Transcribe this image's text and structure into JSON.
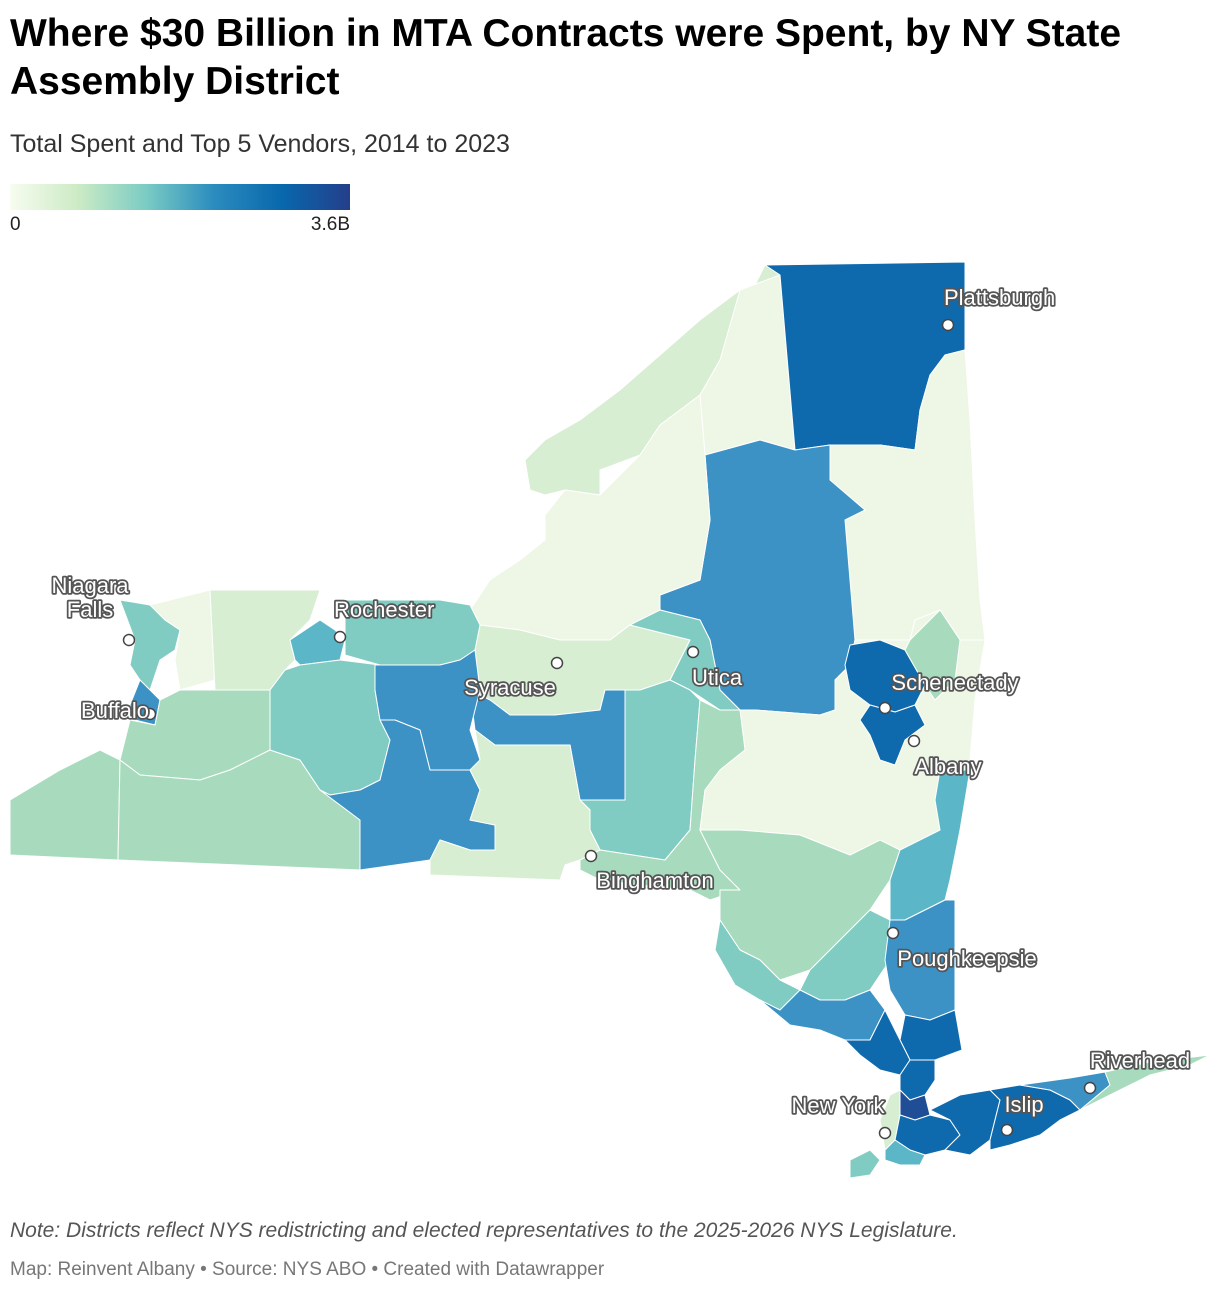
{
  "title": "Where $30 Billion in MTA Contracts were Spent, by NY State Assembly District",
  "subtitle": "Total Spent and Top 5 Vendors, 2014 to 2023",
  "legend": {
    "min_label": "0",
    "max_label": "3.6B",
    "scale_colors": [
      "#f7fcf0",
      "#ccebc5",
      "#7bccc4",
      "#2b8cbe",
      "#0868ac",
      "#253e8a"
    ]
  },
  "colors": {
    "very_low": "#eef7e6",
    "low": "#d7eed3",
    "low_mid": "#a8dbbd",
    "mid": "#81ccc2",
    "mid_high": "#5bb7c8",
    "high": "#3c92c4",
    "very_high": "#0f6aad",
    "top": "#1f4e96"
  },
  "cities": [
    {
      "name": "Plattsburgh",
      "label": "Plattsburgh"
    },
    {
      "name": "Niagara Falls",
      "label": "Niagara\nFalls"
    },
    {
      "name": "Rochester",
      "label": "Rochester"
    },
    {
      "name": "Buffalo",
      "label": "Buffalo"
    },
    {
      "name": "Syracuse",
      "label": "Syracuse"
    },
    {
      "name": "Utica",
      "label": "Utica"
    },
    {
      "name": "Schenectady",
      "label": "Schenectady"
    },
    {
      "name": "Albany",
      "label": "Albany"
    },
    {
      "name": "Binghamton",
      "label": "Binghamton"
    },
    {
      "name": "Poughkeepsie",
      "label": "Poughkeepsie"
    },
    {
      "name": "Riverhead",
      "label": "Riverhead"
    },
    {
      "name": "New York",
      "label": "New York"
    },
    {
      "name": "Islip",
      "label": "Islip"
    }
  ],
  "note": "Note: Districts reflect NYS redistricting and elected representatives to the 2025-2026 NYS Legislature.",
  "footer": "Map: Reinvent Albany • Source: NYS ABO • Created with Datawrapper"
}
